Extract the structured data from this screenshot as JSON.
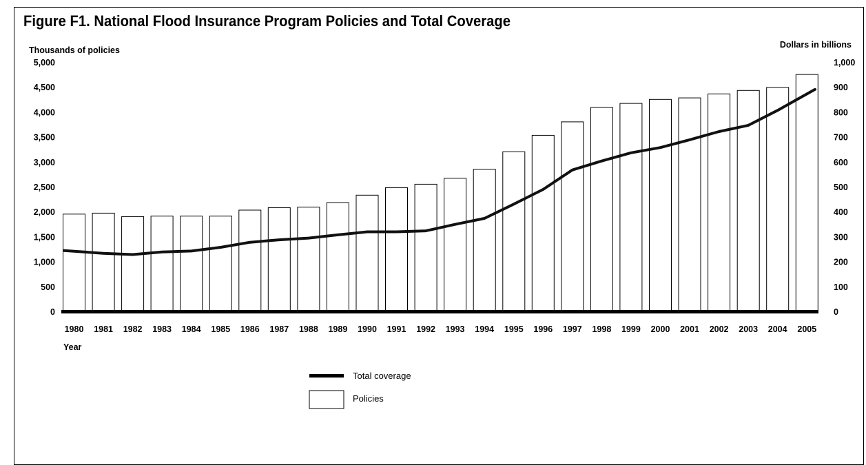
{
  "figure": {
    "title": "Figure F1. National Flood Insurance Program Policies and Total Coverage"
  },
  "chart_data": {
    "type": "bar",
    "title": "Figure F1. National Flood Insurance Program Policies and Total Coverage",
    "xlabel": "Year",
    "ylabel_left": "Thousands of policies",
    "ylabel_right": "Dollars in billions",
    "ylim_left": [
      0,
      5000
    ],
    "ylim_right": [
      0,
      1000
    ],
    "yticks_left": [
      "0",
      "500",
      "1,000",
      "1,500",
      "2,000",
      "2,500",
      "3,000",
      "3,500",
      "4,000",
      "4,500",
      "5,000"
    ],
    "yticks_right": [
      "0",
      "100",
      "200",
      "300",
      "400",
      "500",
      "600",
      "700",
      "800",
      "900",
      "1,000"
    ],
    "categories": [
      "1980",
      "1981",
      "1982",
      "1983",
      "1984",
      "1985",
      "1986",
      "1987",
      "1988",
      "1989",
      "1990",
      "1991",
      "1992",
      "1993",
      "1994",
      "1995",
      "1996",
      "1997",
      "1998",
      "1999",
      "2000",
      "2001",
      "2002",
      "2003",
      "2004",
      "2005"
    ],
    "series": [
      {
        "name": "Policies",
        "kind": "bar",
        "axis": "left",
        "values": [
          1950,
          1970,
          1900,
          1910,
          1910,
          1910,
          2030,
          2080,
          2090,
          2180,
          2330,
          2480,
          2550,
          2670,
          2850,
          3200,
          3530,
          3800,
          4090,
          4170,
          4250,
          4280,
          4360,
          4430,
          4490,
          4750
        ]
      },
      {
        "name": "Total coverage",
        "kind": "line",
        "axis": "right",
        "values": [
          244,
          233,
          228,
          238,
          242,
          257,
          277,
          287,
          294,
          307,
          319,
          319,
          323,
          349,
          373,
          430,
          489,
          567,
          603,
          636,
          657,
          688,
          721,
          746,
          806,
          890
        ]
      }
    ],
    "legend": {
      "placement": "bottom-center",
      "entries": [
        "Total coverage",
        "Policies"
      ]
    },
    "grid": false
  }
}
